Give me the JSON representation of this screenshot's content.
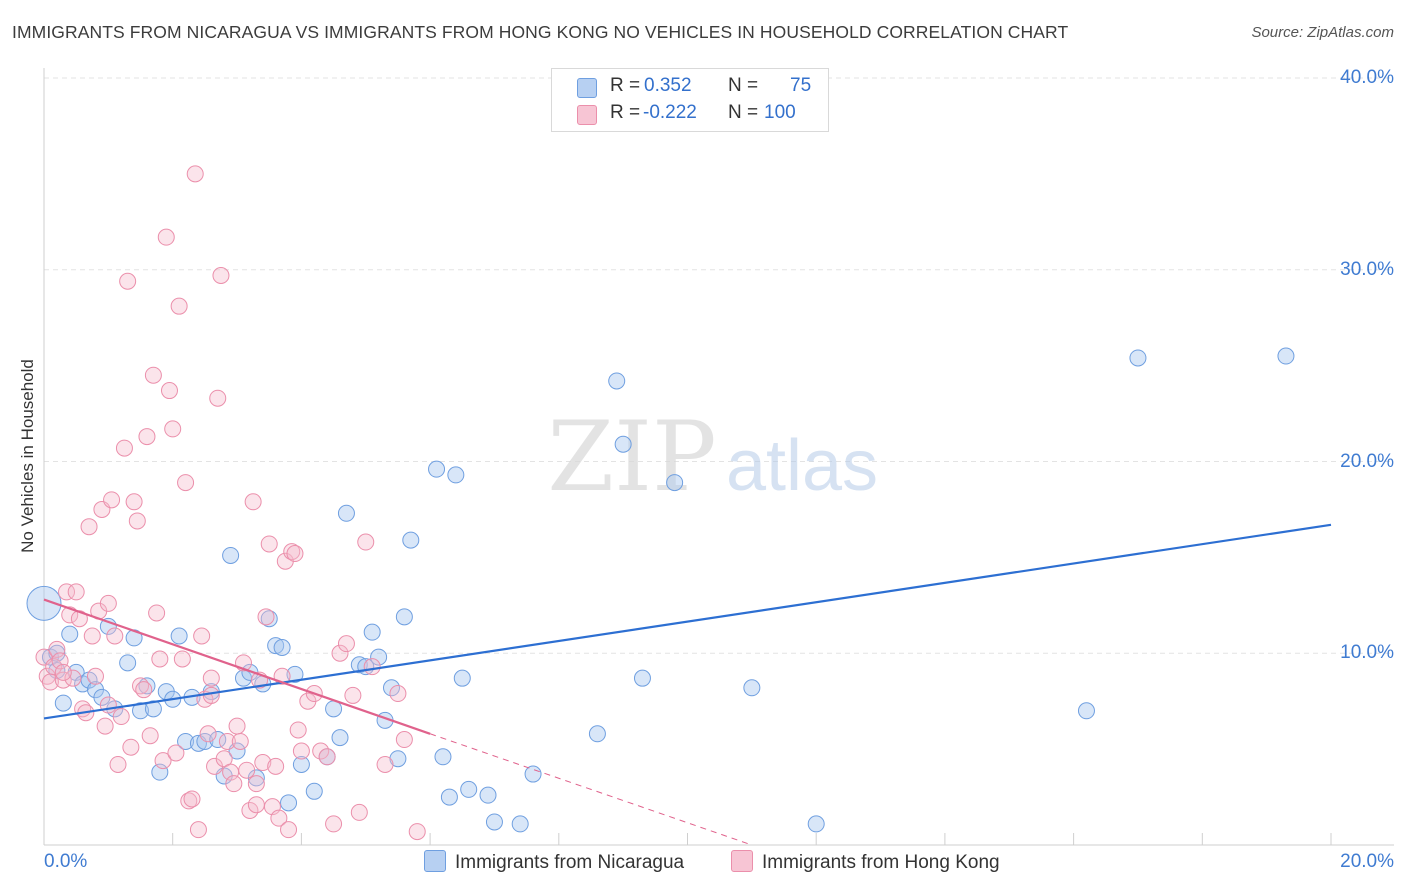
{
  "header": {
    "title": "IMMIGRANTS FROM NICARAGUA VS IMMIGRANTS FROM HONG KONG NO VEHICLES IN HOUSEHOLD CORRELATION CHART",
    "source": "Source: ZipAtlas.com"
  },
  "watermark": {
    "zip": "ZIP",
    "atlas": "atlas"
  },
  "legend": {
    "rows": [
      {
        "r_label": "R =",
        "r_value": "0.352",
        "n_label": "N =",
        "n_value": "75"
      },
      {
        "r_label": "R =",
        "r_value": "-0.222",
        "n_label": "N =",
        "n_value": "100"
      }
    ]
  },
  "chart_data": {
    "type": "scatter",
    "title": "IMMIGRANTS FROM NICARAGUA VS IMMIGRANTS FROM HONG KONG NO VEHICLES IN HOUSEHOLD CORRELATION CHART",
    "ylabel": "No Vehicles in Household",
    "xlim": [
      0,
      20
    ],
    "ylim": [
      0,
      40
    ],
    "x_ticks": [
      "0.0%",
      "20.0%"
    ],
    "y_ticks": [
      "10.0%",
      "20.0%",
      "30.0%",
      "40.0%"
    ],
    "grid": true,
    "legend_position": "top-center",
    "colors": {
      "nicaragua_fill": "#a9c8f0",
      "nicaragua_stroke": "#6f9fe0",
      "nicaragua_line": "#2d6fd2",
      "hongkong_fill": "#f6bccd",
      "hongkong_stroke": "#eb8fab",
      "hongkong_line": "#e0628c"
    },
    "series": [
      {
        "name": "Immigrants from Nicaragua",
        "r": 0.352,
        "n": 75,
        "trend": {
          "x0": 0,
          "y0": 6.6,
          "x1": 20,
          "y1": 16.7
        },
        "points": [
          [
            0.0,
            12.6
          ],
          [
            0.1,
            9.8
          ],
          [
            0.2,
            9.1
          ],
          [
            0.3,
            7.4
          ],
          [
            0.4,
            11.0
          ],
          [
            0.5,
            9.0
          ],
          [
            0.6,
            8.4
          ],
          [
            0.7,
            8.6
          ],
          [
            0.8,
            8.1
          ],
          [
            0.9,
            7.7
          ],
          [
            1.0,
            11.4
          ],
          [
            1.1,
            7.1
          ],
          [
            1.3,
            9.5
          ],
          [
            1.4,
            10.8
          ],
          [
            1.5,
            7.0
          ],
          [
            1.6,
            8.3
          ],
          [
            1.7,
            7.1
          ],
          [
            1.8,
            3.8
          ],
          [
            1.9,
            8.0
          ],
          [
            2.0,
            7.6
          ],
          [
            2.1,
            10.9
          ],
          [
            2.2,
            5.4
          ],
          [
            2.3,
            7.7
          ],
          [
            2.4,
            5.3
          ],
          [
            2.5,
            5.4
          ],
          [
            2.6,
            8.0
          ],
          [
            2.7,
            5.5
          ],
          [
            2.8,
            3.6
          ],
          [
            2.9,
            15.1
          ],
          [
            3.0,
            4.9
          ],
          [
            3.1,
            8.7
          ],
          [
            3.2,
            9.0
          ],
          [
            3.3,
            3.5
          ],
          [
            3.4,
            8.4
          ],
          [
            3.5,
            11.8
          ],
          [
            3.6,
            10.4
          ],
          [
            3.7,
            10.3
          ],
          [
            3.8,
            2.2
          ],
          [
            3.9,
            8.9
          ],
          [
            4.0,
            4.2
          ],
          [
            4.2,
            2.8
          ],
          [
            4.4,
            4.6
          ],
          [
            4.5,
            7.1
          ],
          [
            4.6,
            5.6
          ],
          [
            4.7,
            17.3
          ],
          [
            4.9,
            9.4
          ],
          [
            5.0,
            9.3
          ],
          [
            5.1,
            11.1
          ],
          [
            5.2,
            9.8
          ],
          [
            5.3,
            6.5
          ],
          [
            5.4,
            8.2
          ],
          [
            5.5,
            4.5
          ],
          [
            5.6,
            11.9
          ],
          [
            5.7,
            15.9
          ],
          [
            6.1,
            19.6
          ],
          [
            6.2,
            4.6
          ],
          [
            6.3,
            2.5
          ],
          [
            6.4,
            19.3
          ],
          [
            6.5,
            8.7
          ],
          [
            6.6,
            2.9
          ],
          [
            6.9,
            2.6
          ],
          [
            7.0,
            1.2
          ],
          [
            7.4,
            1.1
          ],
          [
            7.6,
            3.7
          ],
          [
            8.6,
            5.8
          ],
          [
            8.9,
            24.2
          ],
          [
            9.0,
            20.9
          ],
          [
            9.3,
            8.7
          ],
          [
            9.8,
            18.9
          ],
          [
            11.0,
            8.2
          ],
          [
            12.0,
            1.1
          ],
          [
            16.2,
            7.0
          ],
          [
            17.0,
            25.4
          ],
          [
            19.3,
            25.5
          ],
          [
            0.2,
            10.0
          ]
        ]
      },
      {
        "name": "Immigrants from Hong Kong",
        "r": -0.222,
        "n": 100,
        "trend": {
          "x0": 0,
          "y0": 12.8,
          "x1": 6.0,
          "y1": 5.8,
          "dashed_to_x": 11.0,
          "dashed_to_y": 0.0
        },
        "points": [
          [
            0.0,
            9.8
          ],
          [
            0.05,
            8.8
          ],
          [
            0.1,
            8.5
          ],
          [
            0.15,
            9.3
          ],
          [
            0.2,
            10.2
          ],
          [
            0.25,
            9.6
          ],
          [
            0.3,
            8.6
          ],
          [
            0.35,
            13.2
          ],
          [
            0.4,
            12.0
          ],
          [
            0.45,
            8.7
          ],
          [
            0.5,
            13.2
          ],
          [
            0.55,
            11.8
          ],
          [
            0.6,
            7.1
          ],
          [
            0.65,
            6.9
          ],
          [
            0.7,
            16.6
          ],
          [
            0.75,
            10.9
          ],
          [
            0.8,
            8.8
          ],
          [
            0.85,
            12.2
          ],
          [
            0.9,
            17.5
          ],
          [
            0.95,
            6.2
          ],
          [
            1.0,
            12.6
          ],
          [
            1.05,
            18.0
          ],
          [
            1.1,
            10.9
          ],
          [
            1.15,
            4.2
          ],
          [
            1.2,
            6.7
          ],
          [
            1.25,
            20.7
          ],
          [
            1.3,
            29.4
          ],
          [
            1.35,
            5.1
          ],
          [
            1.4,
            17.9
          ],
          [
            1.45,
            16.9
          ],
          [
            1.5,
            8.3
          ],
          [
            1.55,
            8.1
          ],
          [
            1.6,
            21.3
          ],
          [
            1.65,
            5.7
          ],
          [
            1.7,
            24.5
          ],
          [
            1.75,
            12.1
          ],
          [
            1.8,
            9.7
          ],
          [
            1.85,
            4.4
          ],
          [
            1.9,
            31.7
          ],
          [
            1.95,
            23.7
          ],
          [
            2.0,
            21.7
          ],
          [
            2.05,
            4.8
          ],
          [
            2.1,
            28.1
          ],
          [
            2.15,
            9.7
          ],
          [
            2.2,
            18.9
          ],
          [
            2.25,
            2.3
          ],
          [
            2.3,
            2.4
          ],
          [
            2.35,
            35.0
          ],
          [
            2.4,
            0.8
          ],
          [
            2.45,
            10.9
          ],
          [
            2.5,
            7.6
          ],
          [
            2.55,
            5.8
          ],
          [
            2.6,
            8.7
          ],
          [
            2.65,
            4.1
          ],
          [
            2.7,
            23.3
          ],
          [
            2.75,
            29.7
          ],
          [
            2.8,
            4.5
          ],
          [
            2.85,
            5.4
          ],
          [
            2.9,
            3.8
          ],
          [
            2.95,
            3.2
          ],
          [
            3.0,
            6.2
          ],
          [
            3.05,
            5.4
          ],
          [
            3.1,
            9.5
          ],
          [
            3.15,
            3.9
          ],
          [
            3.2,
            1.8
          ],
          [
            3.25,
            17.9
          ],
          [
            3.3,
            3.2
          ],
          [
            3.35,
            8.6
          ],
          [
            3.4,
            4.3
          ],
          [
            3.45,
            11.9
          ],
          [
            3.5,
            15.7
          ],
          [
            3.55,
            2.0
          ],
          [
            3.6,
            4.1
          ],
          [
            3.65,
            1.4
          ],
          [
            3.7,
            8.8
          ],
          [
            3.75,
            14.8
          ],
          [
            3.8,
            0.8
          ],
          [
            3.85,
            15.3
          ],
          [
            3.9,
            15.2
          ],
          [
            3.95,
            6.0
          ],
          [
            4.0,
            4.9
          ],
          [
            4.1,
            7.5
          ],
          [
            4.2,
            7.9
          ],
          [
            4.3,
            4.9
          ],
          [
            4.4,
            4.6
          ],
          [
            4.5,
            1.1
          ],
          [
            4.6,
            10.0
          ],
          [
            4.7,
            10.5
          ],
          [
            4.8,
            7.8
          ],
          [
            4.9,
            1.7
          ],
          [
            5.0,
            15.8
          ],
          [
            5.1,
            9.3
          ],
          [
            5.3,
            4.2
          ],
          [
            5.5,
            7.9
          ],
          [
            5.6,
            5.5
          ],
          [
            5.8,
            0.7
          ],
          [
            3.3,
            2.1
          ],
          [
            1.0,
            7.3
          ],
          [
            0.3,
            9.0
          ],
          [
            2.6,
            7.8
          ]
        ]
      }
    ]
  },
  "bottom_legend": {
    "items": [
      "Immigrants from Nicaragua",
      "Immigrants from Hong Kong"
    ]
  }
}
